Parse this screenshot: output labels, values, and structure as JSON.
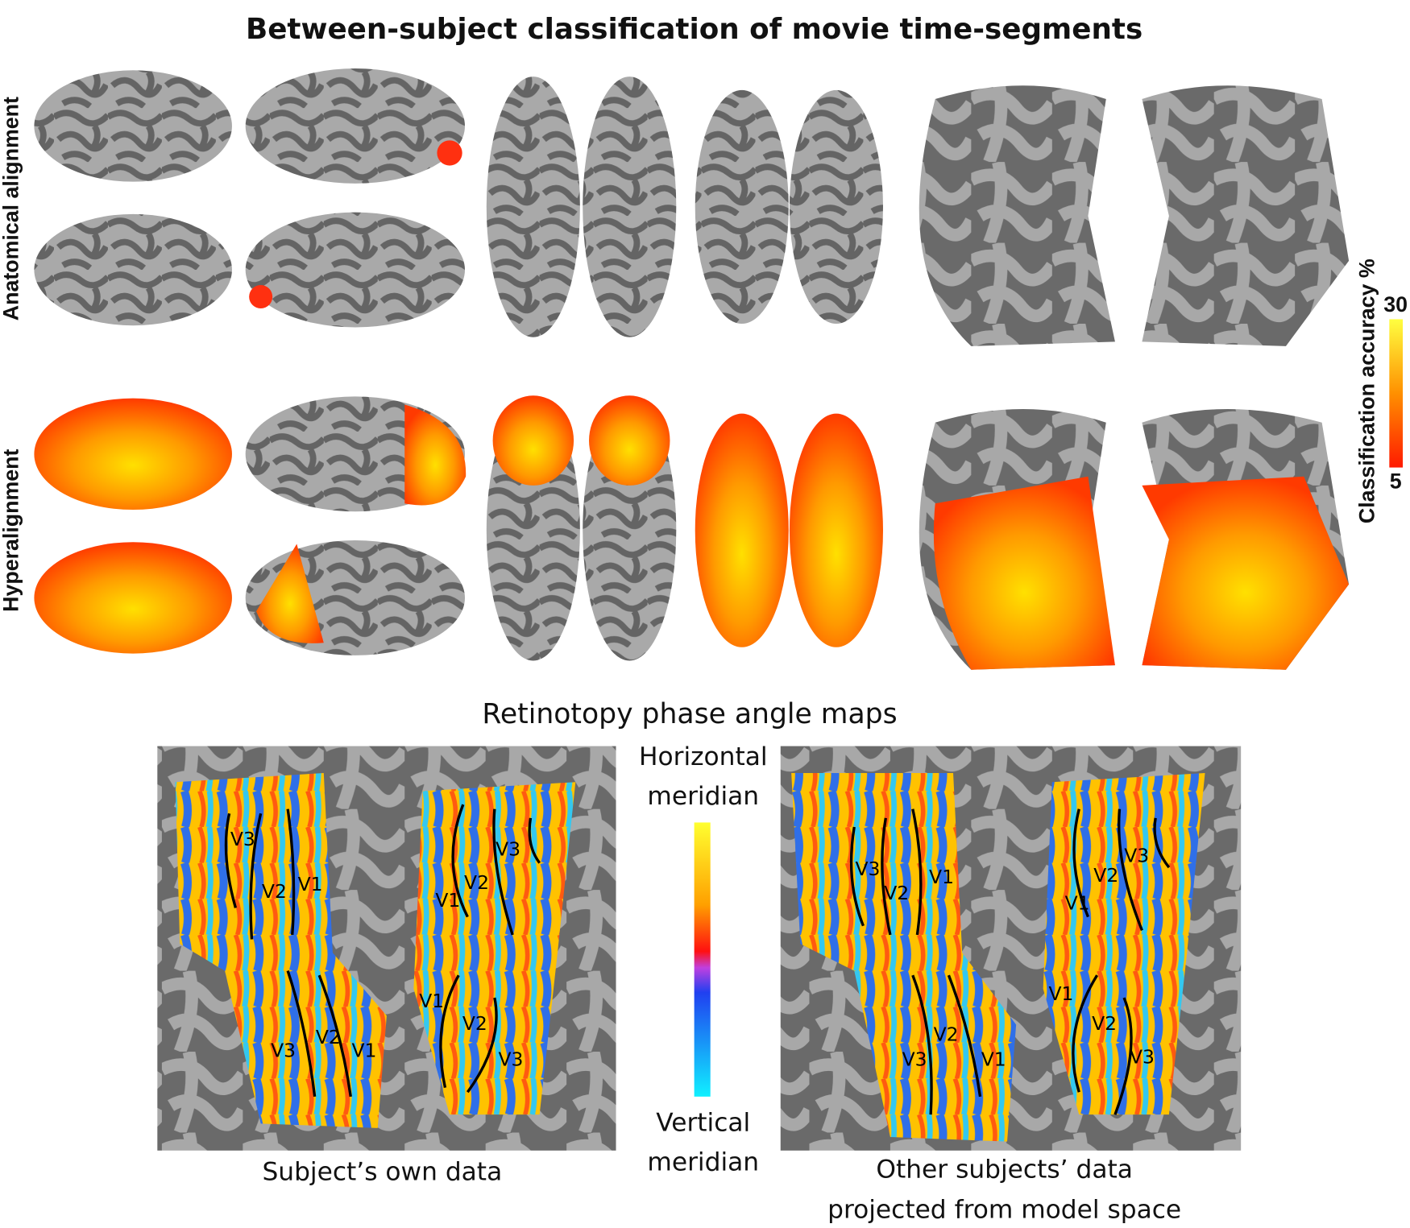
{
  "title": "Between-subject classification of movie time-segments",
  "rows": [
    {
      "label": "Anatomical alignment"
    },
    {
      "label": "Hyperalignment"
    }
  ],
  "colorbar": {
    "label": "Classification accuracy %",
    "max": "30",
    "min": "5"
  },
  "retinotopy": {
    "title": "Retinotopy phase angle maps",
    "legend_top": [
      "Horizontal",
      "meridian"
    ],
    "legend_bottom": [
      "Vertical",
      "meridian"
    ],
    "panels": [
      {
        "caption": [
          "Subject’s own data"
        ],
        "labels": [
          "V3",
          "V2",
          "V1",
          "V1",
          "V2",
          "V3",
          "V3",
          "V2",
          "V1",
          "V1",
          "V2",
          "V3"
        ]
      },
      {
        "caption": [
          "Other subjects’ data",
          "projected from model space"
        ],
        "labels": [
          "V3",
          "V2",
          "V1",
          "V1",
          "V2",
          "V3",
          "V3",
          "V2",
          "V1",
          "V1",
          "V2",
          "V3"
        ]
      }
    ]
  }
}
